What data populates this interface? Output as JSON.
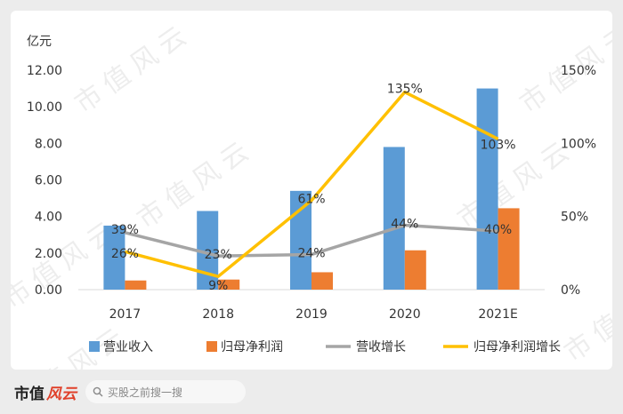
{
  "watermark": "市值风云",
  "footer": {
    "logo_text": "市值",
    "logo_mark": "风云",
    "search_placeholder": "买股之前搜一搜"
  },
  "colors": {
    "revenue": "#5b9bd5",
    "net_profit": "#ed7d31",
    "revenue_growth": "#a5a5a5",
    "profit_growth": "#ffc000"
  },
  "chart_data": {
    "type": "bar",
    "title": "",
    "unit_label": "亿元",
    "categories": [
      "2017",
      "2018",
      "2019",
      "2020",
      "2021E"
    ],
    "ylim_left": [
      0,
      12
    ],
    "yticks_left": [
      "0.00",
      "2.00",
      "4.00",
      "6.00",
      "8.00",
      "10.00",
      "12.00"
    ],
    "ylim_right": [
      0,
      150
    ],
    "yticks_right": [
      "0%",
      "50%",
      "100%",
      "150%"
    ],
    "legend_position": "bottom",
    "grid": false,
    "series": [
      {
        "name": "营业收入",
        "type": "bar",
        "axis": "left",
        "values": [
          3.5,
          4.3,
          5.4,
          7.8,
          11.0
        ]
      },
      {
        "name": "归母净利润",
        "type": "bar",
        "axis": "left",
        "values": [
          0.5,
          0.55,
          0.95,
          2.15,
          4.45
        ]
      },
      {
        "name": "营收增长",
        "type": "line",
        "axis": "right",
        "values": [
          39,
          23,
          24,
          44,
          40
        ],
        "labels": [
          "39%",
          "23%",
          "24%",
          "44%",
          "40%"
        ]
      },
      {
        "name": "归母净利润增长",
        "type": "line",
        "axis": "right",
        "values": [
          26,
          9,
          61,
          135,
          103
        ],
        "labels": [
          "26%",
          "9%",
          "61%",
          "135%",
          "103%"
        ]
      }
    ]
  }
}
